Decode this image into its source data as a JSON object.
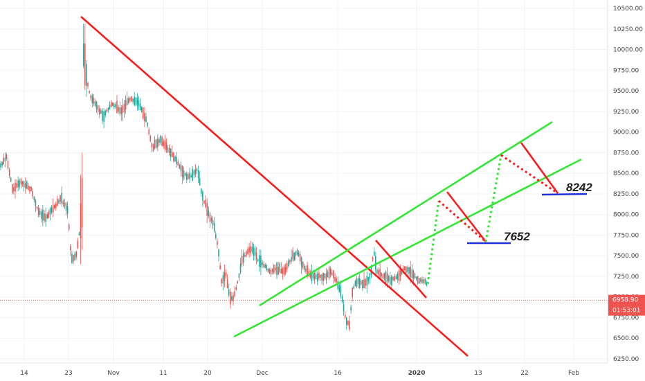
{
  "chart_data": {
    "type": "candlestick",
    "colors": {
      "up": "#26a69a",
      "down": "#ef5350",
      "bg": "#ffffff",
      "grid": "#f0f3fa",
      "trendline": "#ff1a1a",
      "channel": "#33e633",
      "support": "#1f2fd6",
      "last_price": "#ef5350",
      "axis_text": "#444444"
    },
    "y_ticks": [
      "10500.00",
      "10250.00",
      "10000.00",
      "9750.00",
      "9500.00",
      "9250.00",
      "9000.00",
      "8750.00",
      "8500.00",
      "8250.00",
      "8000.00",
      "7750.00",
      "7500.00",
      "7250.00",
      "7000.00",
      "6750.00",
      "6500.00",
      "6250.00"
    ],
    "y_values": [
      10500,
      10250,
      10000,
      9750,
      9500,
      9250,
      9000,
      8750,
      8500,
      8250,
      8000,
      7750,
      7500,
      7250,
      7000,
      6750,
      6500,
      6250
    ],
    "ylim": [
      6230,
      10560
    ],
    "x_ticks": [
      "14",
      "23",
      "Nov",
      "11",
      "20",
      "Dec",
      "16",
      "2020",
      "13",
      "22",
      "Feb"
    ],
    "last_price": {
      "value": 6958.9,
      "label": "6958.90",
      "countdown": "01:53:01"
    },
    "annotations": [
      {
        "label": "7652",
        "value": 7652
      },
      {
        "label": "8242",
        "value": 8242
      }
    ]
  }
}
